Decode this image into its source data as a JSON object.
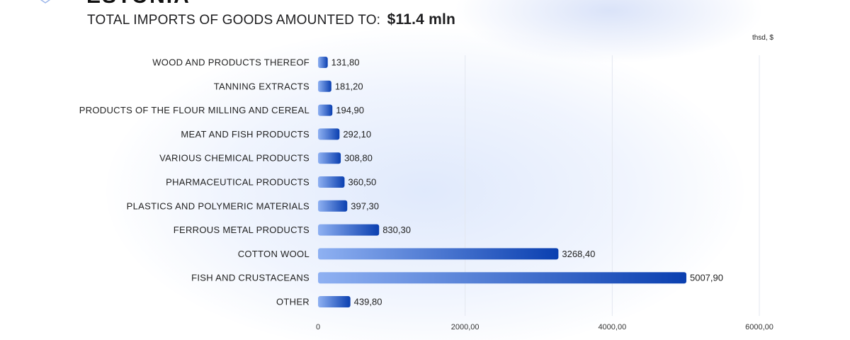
{
  "header": {
    "country": "ESTONIA",
    "title_prefix": "TOTAL IMPORTS OF GOODS AMOUNTED TO:",
    "title_amount": "$11.4 mln",
    "unit": "thsd, $"
  },
  "colors": {
    "bar_start": "#8fb1f2",
    "bar_end": "#0a3fb0",
    "grid": "#e3e7ef"
  },
  "chart_data": {
    "type": "bar",
    "orientation": "horizontal",
    "categories": [
      "WOOD AND PRODUCTS THEREOF",
      "TANNING EXTRACTS",
      "PRODUCTS OF THE FLOUR MILLING AND CEREAL",
      "MEAT AND FISH PRODUCTS",
      "VARIOUS CHEMICAL PRODUCTS",
      "PHARMACEUTICAL PRODUCTS",
      "PLASTICS AND POLYMERIC MATERIALS",
      "FERROUS METAL PRODUCTS",
      "COTTON WOOL",
      "FISH AND CRUSTACEANS",
      "OTHER"
    ],
    "values": [
      131.8,
      181.2,
      194.9,
      292.1,
      308.8,
      360.5,
      397.3,
      830.3,
      3268.4,
      5007.9,
      439.8
    ],
    "value_labels": [
      "131,80",
      "181,20",
      "194,90",
      "292,10",
      "308,80",
      "360,50",
      "397,30",
      "830,30",
      "3268,40",
      "5007,90",
      "439,80"
    ],
    "xlim": [
      0,
      6000
    ],
    "xticks": [
      0,
      2000,
      4000,
      6000
    ],
    "xtick_labels": [
      "0",
      "2000,00",
      "4000,00",
      "6000,00"
    ],
    "grid": true,
    "legend": "none"
  }
}
